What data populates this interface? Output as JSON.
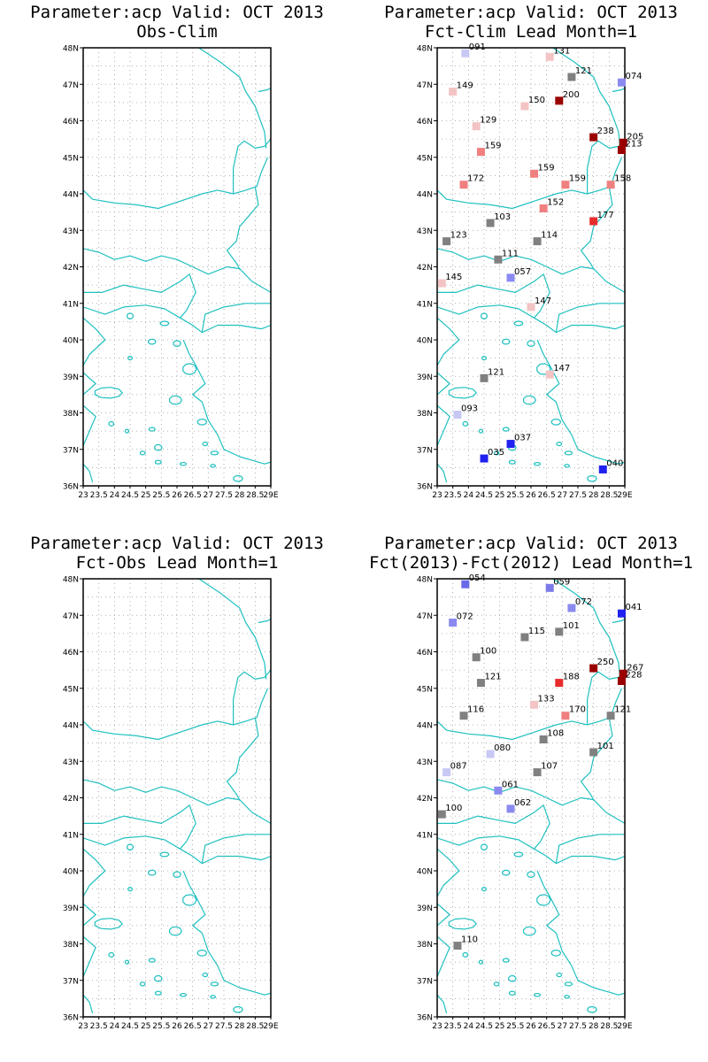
{
  "colors": {
    "coastline": "#20c0c0",
    "grid": "#9a9a9a",
    "neutral": "#808080"
  },
  "panels": [
    {
      "id": "p1",
      "title_line1": "Parameter:acp Valid: OCT 2013",
      "title_line2": "Obs-Clim",
      "markers": []
    },
    {
      "id": "p2",
      "title_line1": "Parameter:acp Valid: OCT 2013",
      "title_line2": "Fct-Clim Lead Month=1",
      "markers": [
        {
          "lon": 23.9,
          "lat": 47.85,
          "label": "091",
          "color": "#c8c8f4"
        },
        {
          "lon": 26.6,
          "lat": 47.75,
          "label": "131",
          "color": "#f4c4c4"
        },
        {
          "lon": 27.3,
          "lat": 47.2,
          "label": "121",
          "color": "#808080"
        },
        {
          "lon": 28.9,
          "lat": 47.05,
          "label": "074",
          "color": "#8a8af0"
        },
        {
          "lon": 23.5,
          "lat": 46.8,
          "label": "149",
          "color": "#f4c4c4"
        },
        {
          "lon": 25.8,
          "lat": 46.4,
          "label": "150",
          "color": "#f4c4c4"
        },
        {
          "lon": 26.9,
          "lat": 46.55,
          "label": "200",
          "color": "#9a0000"
        },
        {
          "lon": 24.25,
          "lat": 45.85,
          "label": "129",
          "color": "#f4c4c4"
        },
        {
          "lon": 28.0,
          "lat": 45.55,
          "label": "238",
          "color": "#9a0000"
        },
        {
          "lon": 28.95,
          "lat": 45.4,
          "label": "205",
          "color": "#9a0000"
        },
        {
          "lon": 28.9,
          "lat": 45.2,
          "label": "213",
          "color": "#9a0000"
        },
        {
          "lon": 24.4,
          "lat": 45.15,
          "label": "159",
          "color": "#f08080"
        },
        {
          "lon": 26.1,
          "lat": 44.55,
          "label": "159",
          "color": "#f08080"
        },
        {
          "lon": 23.85,
          "lat": 44.25,
          "label": "172",
          "color": "#f08080"
        },
        {
          "lon": 27.1,
          "lat": 44.25,
          "label": "159",
          "color": "#f08080"
        },
        {
          "lon": 28.55,
          "lat": 44.25,
          "label": "158",
          "color": "#f08080"
        },
        {
          "lon": 26.4,
          "lat": 43.6,
          "label": "152",
          "color": "#f08080"
        },
        {
          "lon": 24.7,
          "lat": 43.2,
          "label": "103",
          "color": "#808080"
        },
        {
          "lon": 28.0,
          "lat": 43.25,
          "label": "177",
          "color": "#e82c2c"
        },
        {
          "lon": 23.3,
          "lat": 42.7,
          "label": "123",
          "color": "#808080"
        },
        {
          "lon": 26.2,
          "lat": 42.7,
          "label": "114",
          "color": "#808080"
        },
        {
          "lon": 24.95,
          "lat": 42.2,
          "label": "111",
          "color": "#808080"
        },
        {
          "lon": 25.35,
          "lat": 41.7,
          "label": "057",
          "color": "#8a8af0"
        },
        {
          "lon": 23.15,
          "lat": 41.55,
          "label": "145",
          "color": "#f4c4c4"
        },
        {
          "lon": 26.0,
          "lat": 40.9,
          "label": "147",
          "color": "#f4c4c4"
        },
        {
          "lon": 24.5,
          "lat": 38.95,
          "label": "121",
          "color": "#808080"
        },
        {
          "lon": 26.6,
          "lat": 39.05,
          "label": "147",
          "color": "#f4c4c4"
        },
        {
          "lon": 23.65,
          "lat": 37.95,
          "label": "093",
          "color": "#c8c8f4"
        },
        {
          "lon": 25.35,
          "lat": 37.15,
          "label": "037",
          "color": "#2020f0"
        },
        {
          "lon": 24.5,
          "lat": 36.75,
          "label": "035",
          "color": "#2020f0"
        },
        {
          "lon": 28.3,
          "lat": 36.45,
          "label": "040",
          "color": "#2020f0"
        }
      ]
    },
    {
      "id": "p3",
      "title_line1": "Parameter:acp Valid: OCT 2013",
      "title_line2": "Fct-Obs Lead Month=1",
      "markers": []
    },
    {
      "id": "p4",
      "title_line1": "Parameter:acp Valid: OCT 2013",
      "title_line2": "Fct(2013)-Fct(2012) Lead Month=1",
      "markers": [
        {
          "lon": 23.9,
          "lat": 47.85,
          "label": "054",
          "color": "#6a6ae8"
        },
        {
          "lon": 26.6,
          "lat": 47.75,
          "label": "059",
          "color": "#7a7ae8"
        },
        {
          "lon": 27.3,
          "lat": 47.2,
          "label": "072",
          "color": "#8a8af0"
        },
        {
          "lon": 28.9,
          "lat": 47.05,
          "label": "041",
          "color": "#2020f0"
        },
        {
          "lon": 23.5,
          "lat": 46.8,
          "label": "072",
          "color": "#8a8af0"
        },
        {
          "lon": 25.8,
          "lat": 46.4,
          "label": "115",
          "color": "#808080"
        },
        {
          "lon": 26.9,
          "lat": 46.55,
          "label": "101",
          "color": "#808080"
        },
        {
          "lon": 24.25,
          "lat": 45.85,
          "label": "100",
          "color": "#808080"
        },
        {
          "lon": 28.0,
          "lat": 45.55,
          "label": "250",
          "color": "#9a0000"
        },
        {
          "lon": 28.95,
          "lat": 45.4,
          "label": "267",
          "color": "#9a0000"
        },
        {
          "lon": 28.9,
          "lat": 45.2,
          "label": "228",
          "color": "#9a0000"
        },
        {
          "lon": 24.4,
          "lat": 45.15,
          "label": "121",
          "color": "#808080"
        },
        {
          "lon": 26.9,
          "lat": 45.15,
          "label": "188",
          "color": "#e82c2c"
        },
        {
          "lon": 26.1,
          "lat": 44.55,
          "label": "133",
          "color": "#f4c4c4"
        },
        {
          "lon": 23.85,
          "lat": 44.25,
          "label": "116",
          "color": "#808080"
        },
        {
          "lon": 27.1,
          "lat": 44.25,
          "label": "170",
          "color": "#f08080"
        },
        {
          "lon": 28.55,
          "lat": 44.25,
          "label": "121",
          "color": "#808080"
        },
        {
          "lon": 26.4,
          "lat": 43.6,
          "label": "108",
          "color": "#808080"
        },
        {
          "lon": 24.7,
          "lat": 43.2,
          "label": "080",
          "color": "#c8c8f4"
        },
        {
          "lon": 28.0,
          "lat": 43.25,
          "label": "101",
          "color": "#808080"
        },
        {
          "lon": 23.3,
          "lat": 42.7,
          "label": "087",
          "color": "#c8c8f4"
        },
        {
          "lon": 26.2,
          "lat": 42.7,
          "label": "107",
          "color": "#808080"
        },
        {
          "lon": 24.95,
          "lat": 42.2,
          "label": "061",
          "color": "#8a8af0"
        },
        {
          "lon": 25.35,
          "lat": 41.7,
          "label": "062",
          "color": "#8a8af0"
        },
        {
          "lon": 23.15,
          "lat": 41.55,
          "label": "100",
          "color": "#808080"
        },
        {
          "lon": 23.65,
          "lat": 37.95,
          "label": "110",
          "color": "#808080"
        }
      ]
    }
  ],
  "lat_ticks": [
    "36N",
    "37N",
    "38N",
    "39N",
    "40N",
    "41N",
    "42N",
    "43N",
    "44N",
    "45N",
    "46N",
    "47N",
    "48N"
  ],
  "lon_ticks": [
    "23",
    "23.5",
    "24",
    "24.5",
    "25",
    "25.5",
    "26",
    "26.5",
    "27",
    "27.5",
    "28",
    "28.5",
    "29E"
  ]
}
